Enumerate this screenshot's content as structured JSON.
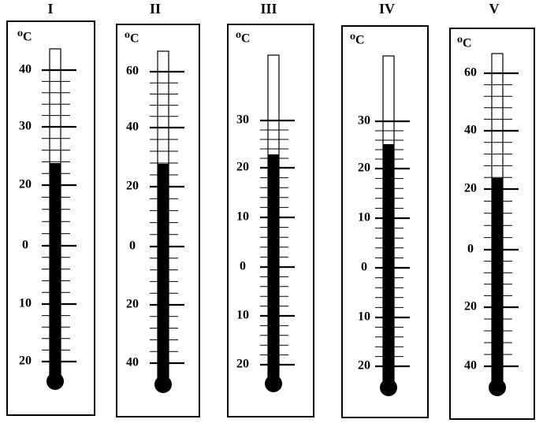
{
  "thermometers": [
    {
      "label": "I",
      "unit": "⁰C",
      "scale": [
        40,
        30,
        20,
        0,
        10,
        20
      ]
    },
    {
      "label": "II",
      "unit": "⁰C",
      "scale": [
        60,
        40,
        20,
        0,
        20,
        40
      ]
    },
    {
      "label": "III",
      "unit": "⁰C",
      "scale": [
        30,
        20,
        10,
        0,
        10,
        20
      ]
    },
    {
      "label": "IV",
      "unit": "⁰C",
      "scale": [
        30,
        20,
        10,
        0,
        10,
        20
      ]
    },
    {
      "label": "V",
      "unit": "⁰C",
      "scale": [
        60,
        40,
        20,
        0,
        20,
        40
      ]
    }
  ]
}
